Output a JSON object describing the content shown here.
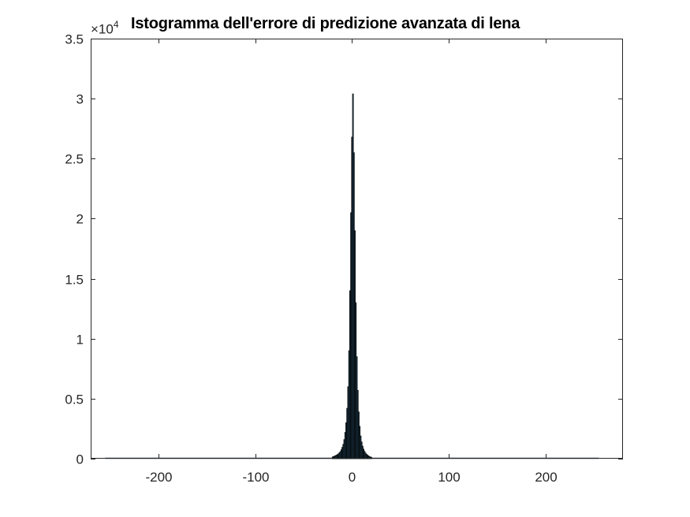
{
  "chart_data": {
    "type": "bar",
    "title": "Istogramma dell'errore di predizione avanzata di lena",
    "y_exponent_label": "×10",
    "y_exponent": "4",
    "xlim": [
      -270,
      280
    ],
    "ylim": [
      0,
      35000
    ],
    "x_ticks": [
      -200,
      -100,
      0,
      100,
      200
    ],
    "x_tick_labels": [
      "-200",
      "-100",
      "0",
      "100",
      "200"
    ],
    "y_ticks": [
      0,
      5000,
      10000,
      15000,
      20000,
      25000,
      30000,
      35000
    ],
    "y_tick_labels": [
      "0",
      "0.5",
      "1",
      "1.5",
      "2",
      "2.5",
      "3",
      "3.5"
    ],
    "grid": false,
    "bar_color": "#1f3b4d",
    "bar_edge_color": "#000000",
    "baseline_range": [
      -255,
      255
    ],
    "bins": [
      {
        "x": -20,
        "value": 150
      },
      {
        "x": -19,
        "value": 180
      },
      {
        "x": -18,
        "value": 220
      },
      {
        "x": -17,
        "value": 260
      },
      {
        "x": -16,
        "value": 300
      },
      {
        "x": -15,
        "value": 350
      },
      {
        "x": -14,
        "value": 400
      },
      {
        "x": -13,
        "value": 500
      },
      {
        "x": -12,
        "value": 600
      },
      {
        "x": -11,
        "value": 750
      },
      {
        "x": -10,
        "value": 950
      },
      {
        "x": -9,
        "value": 1200
      },
      {
        "x": -8,
        "value": 1600
      },
      {
        "x": -7,
        "value": 2200
      },
      {
        "x": -6,
        "value": 3000
      },
      {
        "x": -5,
        "value": 4200
      },
      {
        "x": -4,
        "value": 6000
      },
      {
        "x": -3,
        "value": 9000
      },
      {
        "x": -2,
        "value": 14000
      },
      {
        "x": -1,
        "value": 20500
      },
      {
        "x": 0,
        "value": 26800
      },
      {
        "x": 1,
        "value": 30400
      },
      {
        "x": 2,
        "value": 25500
      },
      {
        "x": 3,
        "value": 19000
      },
      {
        "x": 4,
        "value": 13000
      },
      {
        "x": 5,
        "value": 8500
      },
      {
        "x": 6,
        "value": 5700
      },
      {
        "x": 7,
        "value": 3900
      },
      {
        "x": 8,
        "value": 2700
      },
      {
        "x": 9,
        "value": 1900
      },
      {
        "x": 10,
        "value": 1400
      },
      {
        "x": 11,
        "value": 1050
      },
      {
        "x": 12,
        "value": 800
      },
      {
        "x": 13,
        "value": 620
      },
      {
        "x": 14,
        "value": 480
      },
      {
        "x": 15,
        "value": 380
      },
      {
        "x": 16,
        "value": 300
      },
      {
        "x": 17,
        "value": 240
      },
      {
        "x": 18,
        "value": 190
      },
      {
        "x": 19,
        "value": 150
      },
      {
        "x": 20,
        "value": 120
      }
    ]
  }
}
